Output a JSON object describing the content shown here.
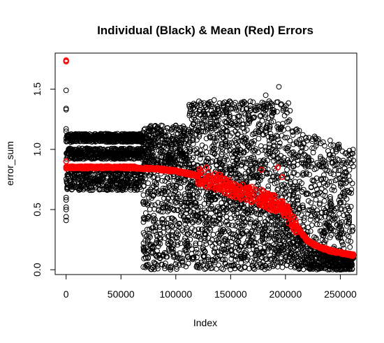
{
  "chart_data": {
    "type": "scatter",
    "title": "Individual (Black) & Mean (Red) Errors",
    "xlabel": "Index",
    "ylabel": "error_sum",
    "xlim": [
      -10000,
      265000
    ],
    "ylim": [
      -0.04,
      1.8
    ],
    "x_ticks": [
      0,
      50000,
      100000,
      150000,
      200000,
      250000
    ],
    "x_tick_labels": [
      "0",
      "50000",
      "100000",
      "150000",
      "200000",
      "250000"
    ],
    "y_ticks": [
      0.0,
      0.5,
      1.0,
      1.5
    ],
    "y_tick_labels": [
      "0.0",
      "0.5",
      "1.0",
      "1.5"
    ],
    "grid": false,
    "legend": "none",
    "series": [
      {
        "color": "#000000",
        "marker": "open-circle",
        "bands": [
          {
            "x_start": 0,
            "x_end": 70000,
            "y_low": 0.66,
            "y_high": 0.86
          },
          {
            "x_start": 0,
            "x_end": 70000,
            "y_low": 0.92,
            "y_high": 1.01
          },
          {
            "x_start": 0,
            "x_end": 70000,
            "y_low": 1.06,
            "y_high": 1.13
          }
        ],
        "outliers": [
          {
            "x": 0,
            "y": 1.49
          },
          {
            "x": 0,
            "y": 1.34
          },
          {
            "x": 0,
            "y": 1.33
          },
          {
            "x": 0,
            "y": 1.17
          },
          {
            "x": 0,
            "y": 1.15
          },
          {
            "x": 0,
            "y": 0.6
          },
          {
            "x": 0,
            "y": 0.58
          },
          {
            "x": 0,
            "y": 0.52
          },
          {
            "x": 0,
            "y": 0.5
          },
          {
            "x": 0,
            "y": 0.44
          },
          {
            "x": 0,
            "y": 0.41
          },
          {
            "x": 122000,
            "y": 1.33
          },
          {
            "x": 135000,
            "y": 1.41
          },
          {
            "x": 160000,
            "y": 1.39
          },
          {
            "x": 182000,
            "y": 1.45
          },
          {
            "x": 194000,
            "y": 1.52
          }
        ]
      },
      {
        "color": "#ff0000",
        "marker": "open-circle",
        "x": [
          0,
          20000,
          40000,
          60000,
          70000,
          80000,
          90000,
          100000,
          110000,
          120000,
          130000,
          140000,
          150000,
          160000,
          170000,
          180000,
          190000,
          195000,
          200000,
          205000,
          210000,
          215000,
          220000,
          230000,
          240000,
          250000,
          262000
        ],
        "y": [
          0.85,
          0.85,
          0.85,
          0.85,
          0.84,
          0.84,
          0.83,
          0.82,
          0.8,
          0.78,
          0.75,
          0.72,
          0.68,
          0.65,
          0.62,
          0.59,
          0.55,
          0.52,
          0.48,
          0.43,
          0.36,
          0.3,
          0.24,
          0.19,
          0.16,
          0.14,
          0.12
        ],
        "outliers": [
          {
            "x": 0,
            "y": 1.74
          },
          {
            "x": 0,
            "y": 1.73
          },
          {
            "x": 0,
            "y": 0.9
          },
          {
            "x": 128000,
            "y": 0.85
          },
          {
            "x": 178000,
            "y": 0.83
          },
          {
            "x": 193000,
            "y": 0.85
          },
          {
            "x": 197000,
            "y": 0.77
          }
        ]
      }
    ]
  }
}
